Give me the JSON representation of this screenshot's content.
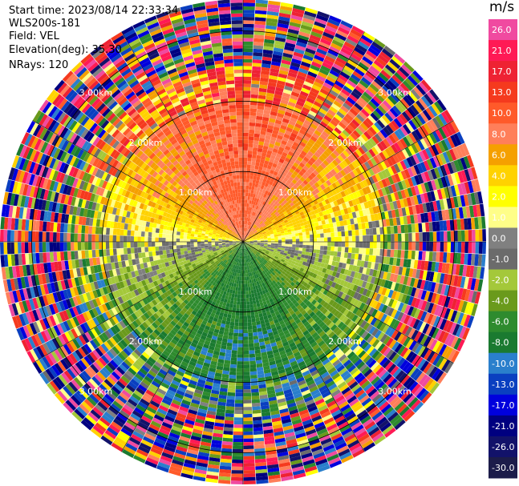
{
  "header": {
    "start_time": "Start time: 2023/08/14 22:33:34",
    "instrument": "WLS200s-181",
    "field": "Field: VEL",
    "elevation": "Elevation(deg): 35.30",
    "nrays": "NRays: 120"
  },
  "colorbar": {
    "unit": "m/s",
    "levels": [
      "26.0",
      "21.0",
      "17.0",
      "13.0",
      "10.0",
      "8.0",
      "6.0",
      "4.0",
      "2.0",
      "1.0",
      "0.0",
      "-1.0",
      "-2.0",
      "-4.0",
      "-6.0",
      "-8.0",
      "-10.0",
      "-13.0",
      "-17.0",
      "-21.0",
      "-26.0",
      "-30.0"
    ],
    "colors": [
      "#f04aa0",
      "#ff1a55",
      "#ee2233",
      "#f53a1e",
      "#ff5a2a",
      "#ff7f5a",
      "#f5a000",
      "#ffd200",
      "#ffff00",
      "#fffe88",
      "#808080",
      "#6b6b6b",
      "#a4c83a",
      "#6a9a1c",
      "#2e8b2e",
      "#1a7a30",
      "#2a7fcc",
      "#0a3fc0",
      "#0000dd",
      "#000080",
      "#12126a",
      "#1c1c4a"
    ]
  },
  "chart_data": {
    "type": "heatmap",
    "projection": "polar PPI",
    "field": "VEL",
    "units": "m/s",
    "nrays": 120,
    "elevation_deg": 35.3,
    "range_rings_km": [
      1.0,
      2.0,
      3.0
    ],
    "ring_labels": [
      "1.00km",
      "2.00km",
      "3.00km"
    ],
    "value_range": [
      -30.0,
      26.0
    ],
    "pattern": {
      "northern_sector_near": "positive 6 to 10 m/s (orange-red)",
      "southern_sector_near": "negative -4 to -8 m/s (green)",
      "east_west_near": "about 0 to 2 m/s (grey and yellow)",
      "outer_ranges": "noisy, full color range"
    }
  }
}
